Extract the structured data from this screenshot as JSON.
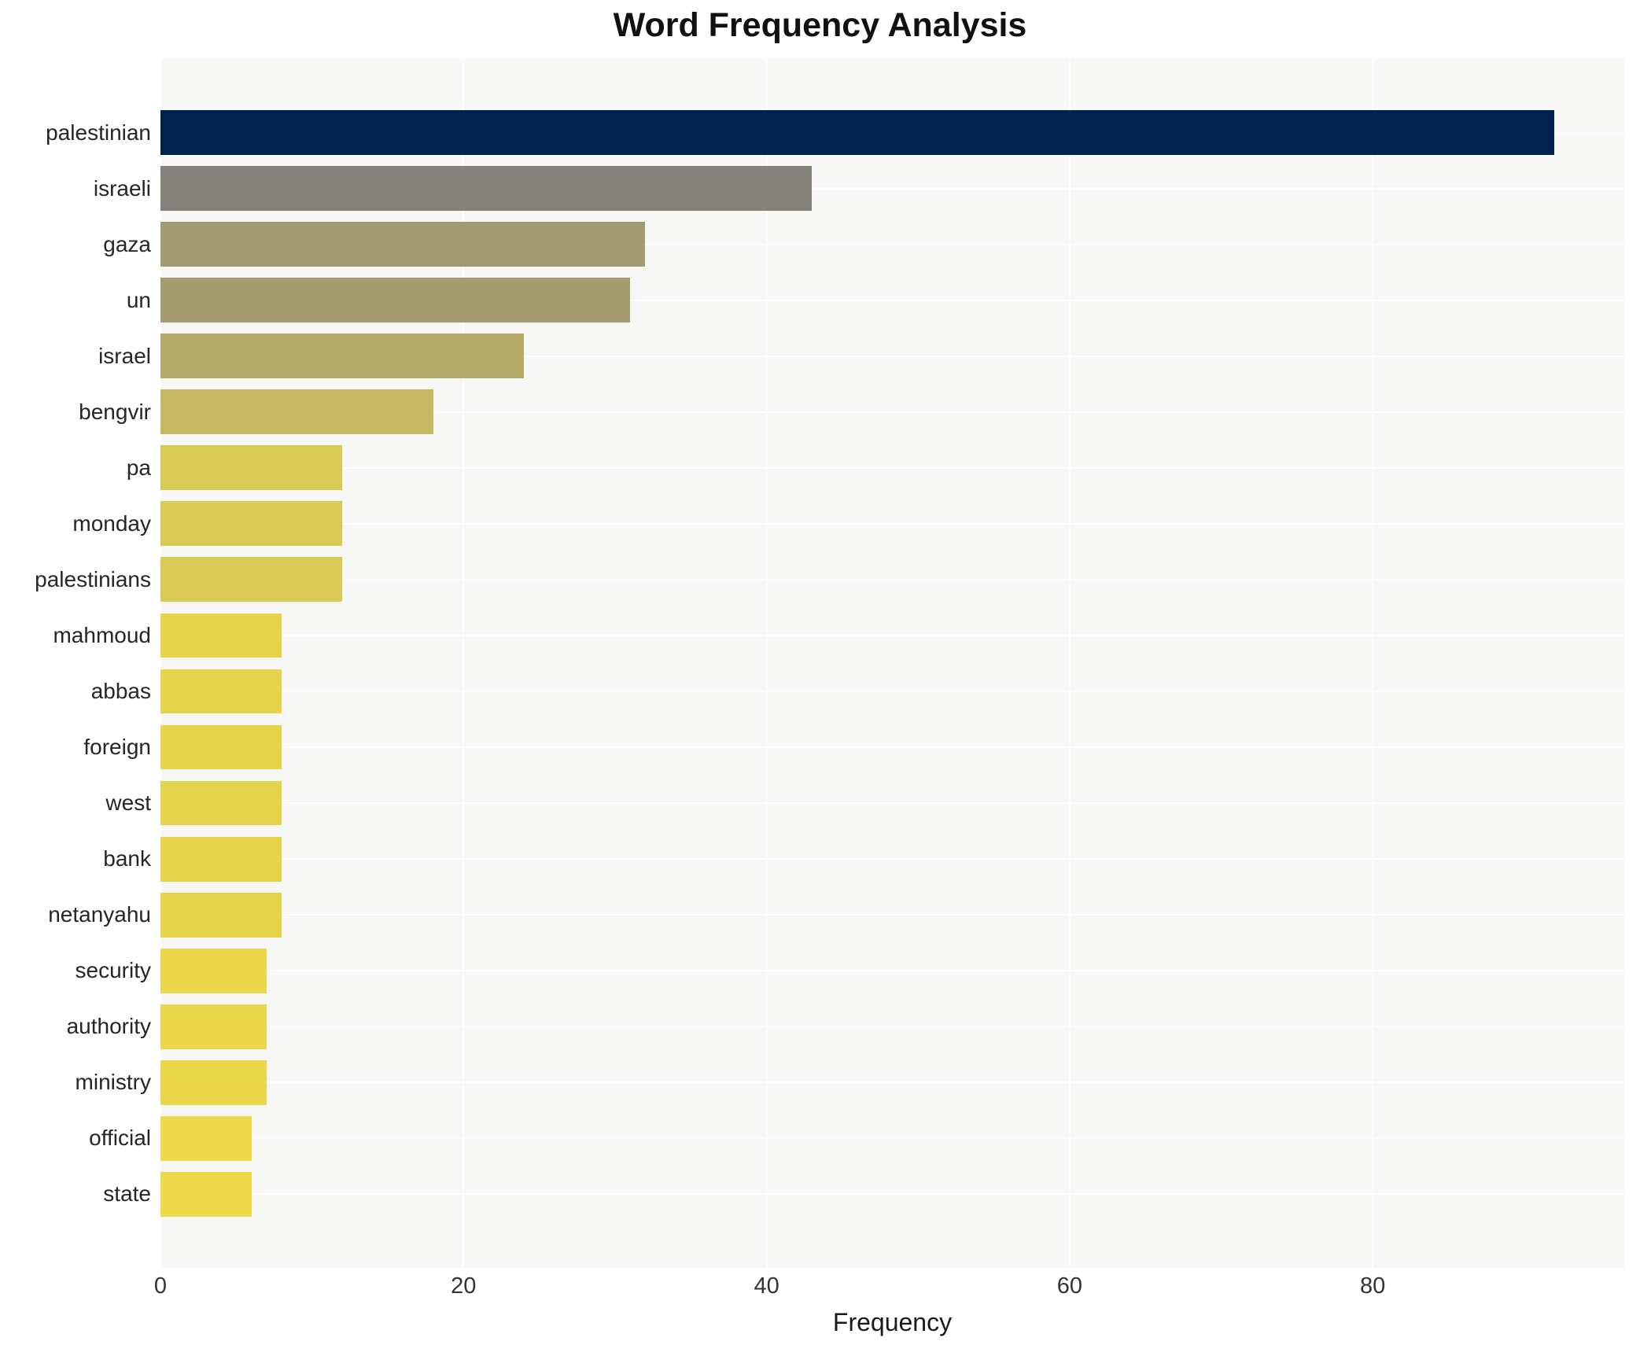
{
  "title": "Word Frequency Analysis",
  "chart_data": {
    "type": "bar",
    "orientation": "horizontal",
    "title": "Word Frequency Analysis",
    "xlabel": "Frequency",
    "ylabel": "",
    "categories": [
      "palestinian",
      "israeli",
      "gaza",
      "un",
      "israel",
      "bengvir",
      "pa",
      "monday",
      "palestinians",
      "mahmoud",
      "abbas",
      "foreign",
      "west",
      "bank",
      "netanyahu",
      "security",
      "authority",
      "ministry",
      "official",
      "state"
    ],
    "values": [
      92,
      43,
      32,
      31,
      24,
      18,
      12,
      12,
      12,
      8,
      8,
      8,
      8,
      8,
      8,
      7,
      7,
      7,
      6,
      6
    ],
    "bar_colors": [
      "#00234e",
      "#84827a",
      "#a29a72",
      "#a49b70",
      "#b4aa69",
      "#c5b962",
      "#d8ca52",
      "#d8ca52",
      "#d8ca52",
      "#e7d44d",
      "#e7d44d",
      "#e7d44d",
      "#e7d44d",
      "#e7d44d",
      "#e7d44d",
      "#ead74b",
      "#ead74b",
      "#ead74b",
      "#edda49",
      "#edda49"
    ],
    "xlim": [
      0,
      96.6
    ],
    "xticks": [
      0,
      20,
      40,
      60,
      80
    ],
    "grid": true,
    "legend": "none",
    "plot_background": "#f7f7f6",
    "grid_color": "#ffffff",
    "label_color": "#262626",
    "tick_color": "#333333",
    "title_color": "#111111"
  }
}
